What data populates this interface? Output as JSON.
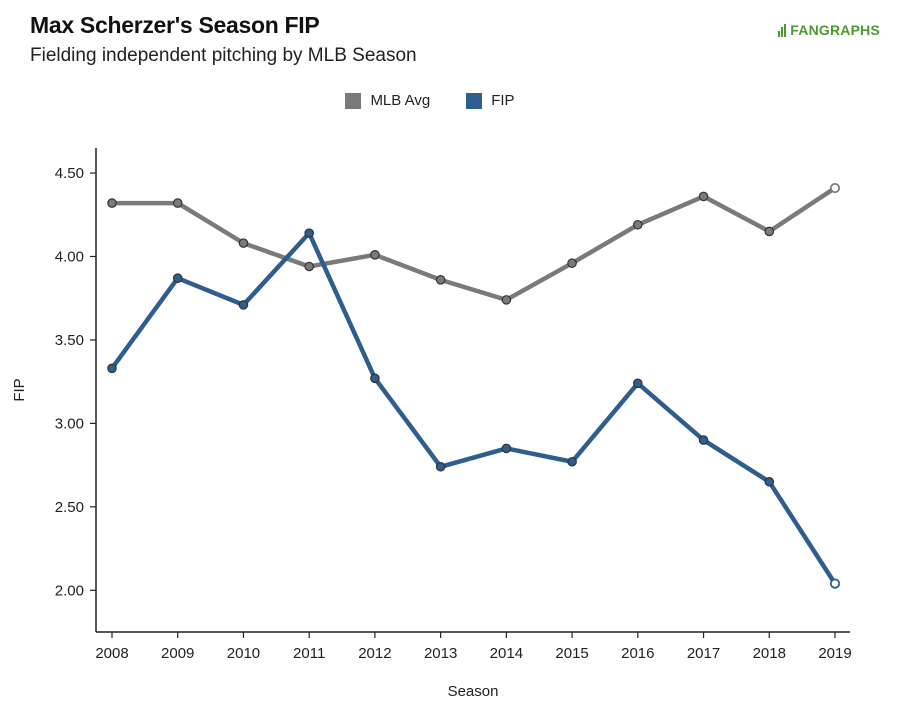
{
  "header": {
    "title": "Max Scherzer's Season FIP",
    "subtitle": "Fielding independent pitching by MLB Season",
    "brand": "FANGRAPHS"
  },
  "colors": {
    "mlb_avg": "#7a7a7a",
    "fip": "#2e5e8e",
    "brand": "#4b9b2f"
  },
  "chart_data": {
    "type": "line",
    "title": "Max Scherzer's Season FIP",
    "subtitle": "Fielding independent pitching by MLB Season",
    "xlabel": "Season",
    "ylabel": "FIP",
    "categories": [
      "2008",
      "2009",
      "2010",
      "2011",
      "2012",
      "2013",
      "2014",
      "2015",
      "2016",
      "2017",
      "2018",
      "2019"
    ],
    "ylim": [
      1.75,
      4.65
    ],
    "yticks": [
      "2.00",
      "2.50",
      "3.00",
      "3.50",
      "4.00",
      "4.50"
    ],
    "ytick_values": [
      2.0,
      2.5,
      3.0,
      3.5,
      4.0,
      4.5
    ],
    "legend_position": "top-center",
    "series": [
      {
        "name": "MLB Avg",
        "color": "#7a7a7a",
        "values": [
          4.32,
          4.32,
          4.08,
          3.94,
          4.01,
          3.86,
          3.74,
          3.96,
          4.19,
          4.36,
          4.15,
          4.41
        ]
      },
      {
        "name": "FIP",
        "color": "#2e5e8e",
        "values": [
          3.33,
          3.87,
          3.71,
          4.14,
          3.27,
          2.74,
          2.85,
          2.77,
          3.24,
          2.9,
          2.65,
          2.04
        ]
      }
    ]
  }
}
